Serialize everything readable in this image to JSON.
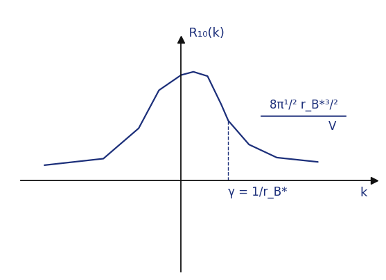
{
  "chart_data": {
    "type": "line",
    "x": [
      -2.9,
      -1.65,
      -0.9,
      -0.47,
      0.0,
      0.26,
      0.56,
      0.85,
      1.0,
      1.44,
      2.03,
      2.9
    ],
    "values": [
      0.14,
      0.2,
      0.48,
      0.83,
      0.97,
      1.0,
      0.96,
      0.7,
      0.55,
      0.33,
      0.21,
      0.17
    ],
    "color": "#1c2f7a",
    "xlim": [
      -3.4,
      4.1
    ],
    "ylim": [
      -0.84,
      1.3
    ],
    "xticks": [],
    "yticks": [],
    "tick_labels": false,
    "grid": false,
    "x_label": "k",
    "y_label": "R₁₀(k)",
    "annotations": [
      {
        "x": 1.0,
        "label": "γ = 1/r_B*",
        "line_style": "dashed"
      },
      {
        "numerator": "8π¹/² r_B*³/²",
        "denominator": "V"
      }
    ]
  }
}
